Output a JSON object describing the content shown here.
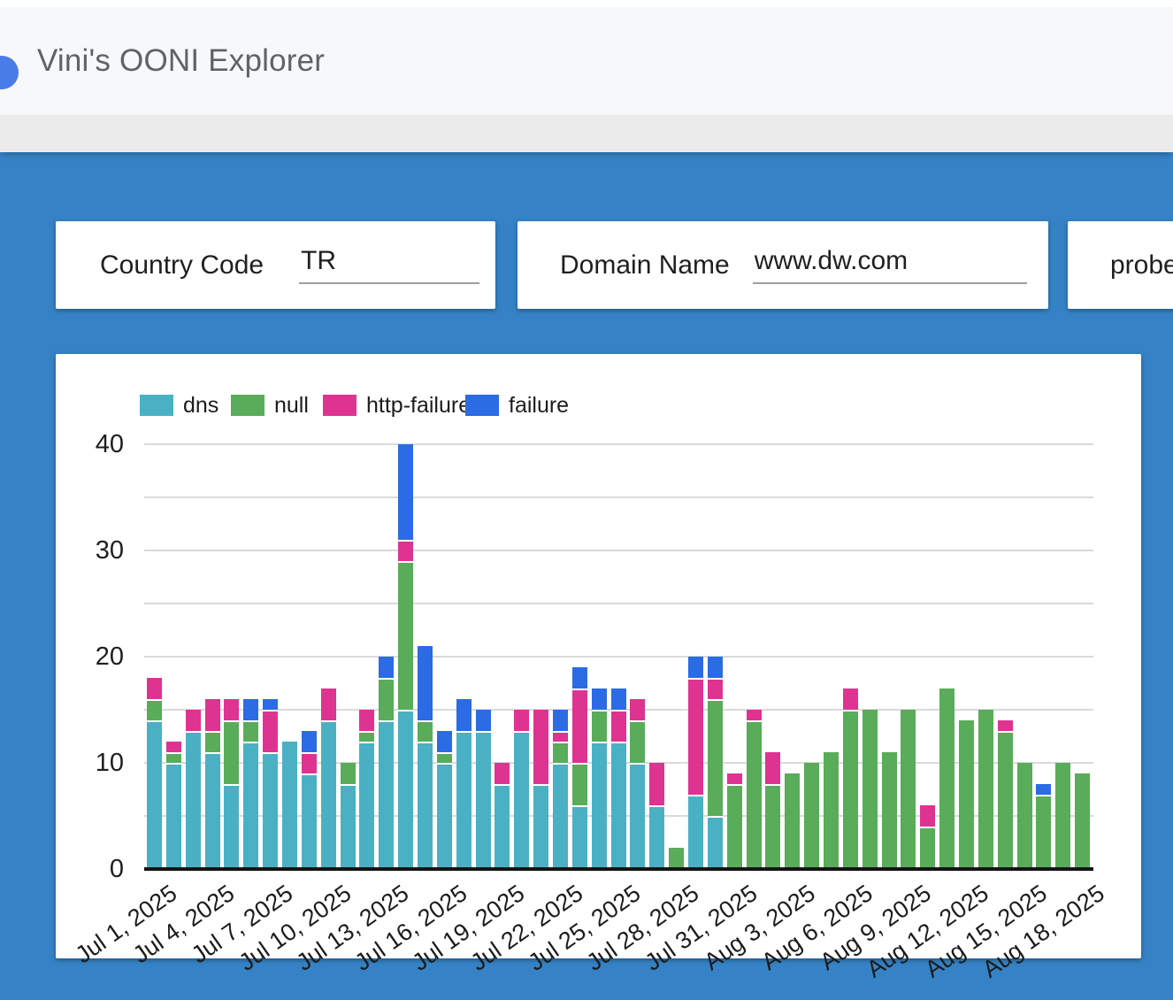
{
  "header": {
    "title": "Vini's OONI Explorer"
  },
  "filters": {
    "country_code": {
      "label": "Country Code",
      "value": "TR"
    },
    "domain_name": {
      "label": "Domain Name",
      "value": "www.dw.com"
    },
    "probe": {
      "label": "probe"
    }
  },
  "colors": {
    "page_background": "#3583C6",
    "header_background": "#F7F8FA",
    "band_background": "#EBEBEB",
    "avatar_blue": "#4A7CE8",
    "grid": "#DADADA",
    "axis": "#151515"
  },
  "chart_data": {
    "type": "bar",
    "stacked": true,
    "legend_position": "top",
    "grid": true,
    "grid_step": 5,
    "ylim": [
      0,
      40
    ],
    "yticks": [
      0,
      10,
      20,
      30,
      40
    ],
    "x_tick_step": 3,
    "categories": [
      "Jul 1, 2025",
      "Jul 2, 2025",
      "Jul 3, 2025",
      "Jul 4, 2025",
      "Jul 5, 2025",
      "Jul 6, 2025",
      "Jul 7, 2025",
      "Jul 8, 2025",
      "Jul 9, 2025",
      "Jul 10, 2025",
      "Jul 11, 2025",
      "Jul 12, 2025",
      "Jul 13, 2025",
      "Jul 14, 2025",
      "Jul 15, 2025",
      "Jul 16, 2025",
      "Jul 17, 2025",
      "Jul 18, 2025",
      "Jul 19, 2025",
      "Jul 20, 2025",
      "Jul 21, 2025",
      "Jul 22, 2025",
      "Jul 23, 2025",
      "Jul 24, 2025",
      "Jul 25, 2025",
      "Jul 26, 2025",
      "Jul 27, 2025",
      "Jul 28, 2025",
      "Jul 29, 2025",
      "Jul 30, 2025",
      "Jul 31, 2025",
      "Aug 1, 2025",
      "Aug 2, 2025",
      "Aug 3, 2025",
      "Aug 4, 2025",
      "Aug 5, 2025",
      "Aug 6, 2025",
      "Aug 7, 2025",
      "Aug 8, 2025",
      "Aug 9, 2025",
      "Aug 10, 2025",
      "Aug 11, 2025",
      "Aug 12, 2025",
      "Aug 13, 2025",
      "Aug 14, 2025",
      "Aug 15, 2025",
      "Aug 16, 2025",
      "Aug 17, 2025",
      "Aug 18, 2025"
    ],
    "series": [
      {
        "name": "dns",
        "color": "#4AB1C4",
        "values": [
          14,
          10,
          13,
          11,
          8,
          12,
          11,
          12,
          9,
          14,
          8,
          12,
          14,
          15,
          12,
          10,
          13,
          13,
          8,
          13,
          8,
          10,
          6,
          12,
          12,
          10,
          6,
          0,
          7,
          5,
          0,
          0,
          0,
          0,
          0,
          0,
          0,
          0,
          0,
          0,
          0,
          0,
          0,
          0,
          0,
          0,
          0,
          0,
          0
        ]
      },
      {
        "name": "null",
        "color": "#59AC59",
        "values": [
          2,
          1,
          0,
          2,
          6,
          2,
          0,
          0,
          0,
          0,
          2,
          1,
          4,
          14,
          2,
          1,
          0,
          0,
          0,
          0,
          0,
          2,
          4,
          3,
          0,
          4,
          0,
          2,
          0,
          11,
          8,
          14,
          8,
          9,
          10,
          11,
          15,
          15,
          11,
          15,
          4,
          17,
          14,
          15,
          13,
          10,
          7,
          10,
          9
        ]
      },
      {
        "name": "http-failure",
        "color": "#DF3391",
        "values": [
          2,
          1,
          2,
          3,
          2,
          0,
          4,
          0,
          2,
          3,
          0,
          2,
          0,
          2,
          0,
          0,
          0,
          0,
          2,
          2,
          7,
          1,
          7,
          0,
          3,
          2,
          4,
          0,
          11,
          2,
          1,
          1,
          3,
          0,
          0,
          0,
          2,
          0,
          0,
          0,
          2,
          0,
          0,
          0,
          1,
          0,
          0,
          0,
          0
        ]
      },
      {
        "name": "failure",
        "color": "#2B6BE4",
        "values": [
          0,
          0,
          0,
          0,
          0,
          2,
          1,
          0,
          2,
          0,
          0,
          0,
          2,
          9,
          7,
          2,
          3,
          2,
          0,
          0,
          0,
          2,
          2,
          2,
          2,
          0,
          0,
          0,
          2,
          2,
          0,
          0,
          0,
          0,
          0,
          0,
          0,
          0,
          0,
          0,
          0,
          0,
          0,
          0,
          0,
          0,
          1,
          0,
          0
        ]
      }
    ]
  }
}
